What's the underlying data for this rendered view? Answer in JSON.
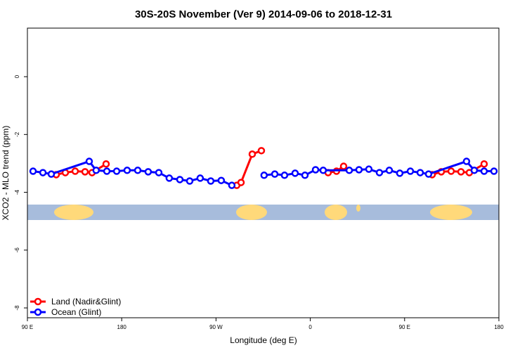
{
  "chart_data": {
    "type": "line",
    "title": "30S-20S November (Ver 9)   2014-09-06 to 2018-12-31",
    "x_label": "Longitude (deg E)",
    "y_label": "XCO2 - MLO trend (ppm)",
    "xlim": [
      90,
      540
    ],
    "ylim": [
      -8.34,
      1.68
    ],
    "xticks": [
      {
        "value": 90,
        "label": "90 E"
      },
      {
        "value": 180,
        "label": "180"
      },
      {
        "value": 270,
        "label": "90 W"
      },
      {
        "value": 360,
        "label": "0"
      },
      {
        "value": 450,
        "label": "90 E"
      },
      {
        "value": 540,
        "label": "180"
      }
    ],
    "yticks": [
      -8,
      -6,
      -4,
      -2,
      0
    ],
    "legend": "bottom-left",
    "series": [
      {
        "name": "Land (Nadir&Glint)",
        "color": "#ff0000",
        "x": [
          117.5,
          126.2,
          135.6,
          145,
          151.7,
          165.1,
          null,
          289.8,
          293.9,
          304.6,
          313.3,
          null,
          377,
          385,
          391.8,
          null,
          476.3,
          485,
          494.4,
          503.8,
          511.8,
          525.9
        ],
        "values": [
          -3.39,
          -3.32,
          -3.27,
          -3.29,
          -3.32,
          -3.02,
          null,
          -3.76,
          -3.66,
          -2.68,
          -2.56,
          null,
          -3.32,
          -3.27,
          -3.1,
          null,
          -3.39,
          -3.29,
          -3.27,
          -3.29,
          -3.32,
          -3.02
        ]
      },
      {
        "name": "Ocean (Glint)",
        "color": "#0000ff",
        "x": [
          95.4,
          104.8,
          112.8,
          149,
          155.6,
          165.8,
          175.2,
          185.2,
          195.3,
          205.3,
          215.4,
          225.4,
          235.5,
          244.9,
          254.9,
          265,
          275,
          285.1,
          null,
          315.9,
          326.1,
          335.4,
          345.5,
          354.9,
          365,
          372.3,
          397.2,
          406.5,
          415.9,
          426,
          435.4,
          445.4,
          455.5,
          464.9,
          472.9,
          509.1,
          516.5,
          525.9,
          535.3
        ],
        "values": [
          -3.27,
          -3.32,
          -3.37,
          -2.93,
          -3.24,
          -3.27,
          -3.27,
          -3.24,
          -3.24,
          -3.29,
          -3.32,
          -3.51,
          -3.56,
          -3.61,
          -3.51,
          -3.61,
          -3.59,
          -3.76,
          null,
          -3.41,
          -3.37,
          -3.41,
          -3.34,
          -3.41,
          -3.22,
          -3.24,
          -3.24,
          -3.22,
          -3.2,
          -3.32,
          -3.24,
          -3.34,
          -3.27,
          -3.32,
          -3.37,
          -2.93,
          -3.24,
          -3.27,
          -3.27
        ]
      }
    ]
  }
}
